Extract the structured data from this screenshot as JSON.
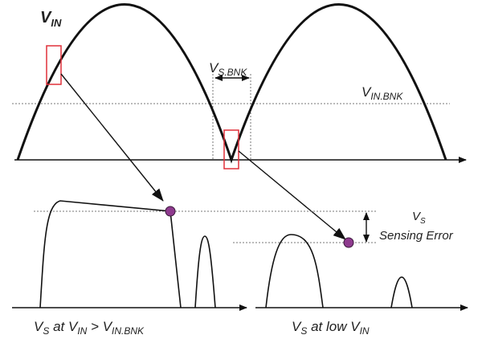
{
  "labels": {
    "vin": {
      "main": "V",
      "sub": "IN"
    },
    "vs_bnk": {
      "main": "V",
      "sub": "S.BNK"
    },
    "vin_bnk": {
      "main": "V",
      "sub": "IN.BNK"
    },
    "vs_error": {
      "main": "V",
      "sub": "S",
      "line2": "Sensing Error"
    },
    "caption_left": {
      "p1": "V",
      "s1": "S",
      "p2": " at V",
      "s2": "IN",
      "p3": " > V",
      "s3": "IN.BNK"
    },
    "caption_right": {
      "p1": "V",
      "s1": "S",
      "p2": " at low V",
      "s2": "IN"
    }
  },
  "colors": {
    "highlight_box": "#e0303a",
    "sample_dot": "#8e3a8e",
    "curve": "#111111",
    "guide": "#777777"
  }
}
